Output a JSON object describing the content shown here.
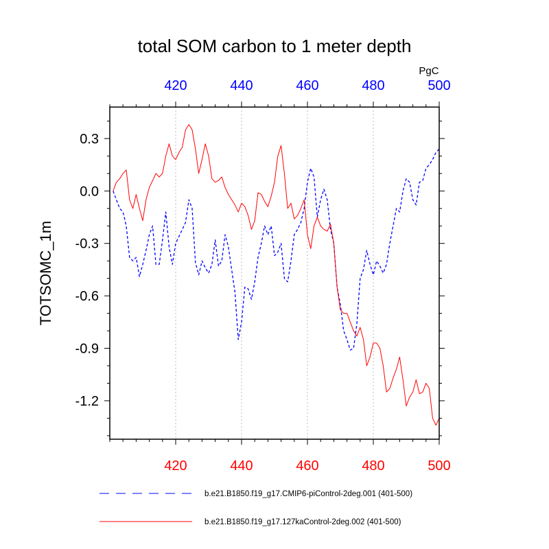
{
  "chart_data": {
    "type": "line",
    "title": "total SOM carbon to 1 meter depth",
    "units": "PgC",
    "ylabel": "TOTSOMC_1m",
    "xlabel": "",
    "xlim": [
      400,
      500
    ],
    "ylim": [
      -1.42,
      0.48
    ],
    "x_ticks": [
      420,
      440,
      460,
      480,
      500
    ],
    "y_ticks": [
      0.3,
      0.0,
      -0.3,
      -0.6,
      -0.9,
      -1.2
    ],
    "y_tick_labels": [
      "0.3",
      "0.0",
      "-0.3",
      "-0.6",
      "-0.9",
      "-1.2"
    ],
    "grid": "vertical dotted at major x ticks",
    "colors": {
      "bottom_axis": "#ff0000",
      "top_axis": "#0000ff"
    },
    "x": [
      401,
      402,
      403,
      404,
      405,
      406,
      407,
      408,
      409,
      410,
      411,
      412,
      413,
      414,
      415,
      416,
      417,
      418,
      419,
      420,
      421,
      422,
      423,
      424,
      425,
      426,
      427,
      428,
      429,
      430,
      431,
      432,
      433,
      434,
      435,
      436,
      437,
      438,
      439,
      440,
      441,
      442,
      443,
      444,
      445,
      446,
      447,
      448,
      449,
      450,
      451,
      452,
      453,
      454,
      455,
      456,
      457,
      458,
      459,
      460,
      461,
      462,
      463,
      464,
      465,
      466,
      467,
      468,
      469,
      470,
      471,
      472,
      473,
      474,
      475,
      476,
      477,
      478,
      479,
      480,
      481,
      482,
      483,
      484,
      485,
      486,
      487,
      488,
      489,
      490,
      491,
      492,
      493,
      494,
      495,
      496,
      497,
      498,
      499,
      500
    ],
    "series": [
      {
        "name": "b.e21.B1850.f19_g17.CMIP6-piControl-2deg.001 (401-500)",
        "color": "#0000ff",
        "dash": "dashed",
        "values": [
          0.0,
          -0.05,
          -0.1,
          -0.12,
          -0.2,
          -0.38,
          -0.4,
          -0.38,
          -0.49,
          -0.42,
          -0.34,
          -0.25,
          -0.2,
          -0.42,
          -0.42,
          -0.28,
          -0.12,
          -0.32,
          -0.42,
          -0.3,
          -0.26,
          -0.22,
          -0.18,
          -0.05,
          -0.1,
          -0.41,
          -0.48,
          -0.4,
          -0.44,
          -0.47,
          -0.42,
          -0.28,
          -0.43,
          -0.4,
          -0.25,
          -0.32,
          -0.45,
          -0.58,
          -0.85,
          -0.75,
          -0.55,
          -0.56,
          -0.62,
          -0.52,
          -0.38,
          -0.3,
          -0.2,
          -0.25,
          -0.2,
          -0.37,
          -0.35,
          -0.3,
          -0.5,
          -0.52,
          -0.4,
          -0.25,
          -0.22,
          -0.18,
          -0.1,
          0.05,
          0.13,
          0.08,
          -0.15,
          -0.05,
          0.01,
          -0.05,
          -0.22,
          -0.3,
          -0.55,
          -0.65,
          -0.8,
          -0.85,
          -0.91,
          -0.9,
          -0.76,
          -0.5,
          -0.45,
          -0.34,
          -0.42,
          -0.48,
          -0.4,
          -0.43,
          -0.47,
          -0.42,
          -0.3,
          -0.2,
          -0.1,
          -0.12,
          0.0,
          0.07,
          0.05,
          -0.05,
          -0.08,
          0.05,
          0.06,
          0.13,
          0.15,
          0.18,
          0.22,
          0.24
        ]
      },
      {
        "name": "b.e21.B1850.f19_g17.127kaControl-2deg.002 (401-500)",
        "color": "#ff0000",
        "dash": "solid",
        "values": [
          0.0,
          0.05,
          0.07,
          0.1,
          0.12,
          -0.05,
          -0.1,
          -0.02,
          -0.1,
          -0.17,
          -0.05,
          0.02,
          0.06,
          0.1,
          0.08,
          0.1,
          0.2,
          0.27,
          0.2,
          0.18,
          0.22,
          0.25,
          0.35,
          0.38,
          0.35,
          0.24,
          0.1,
          0.18,
          0.27,
          0.2,
          0.07,
          0.05,
          0.06,
          0.08,
          0.02,
          -0.02,
          -0.05,
          -0.08,
          -0.12,
          -0.07,
          -0.09,
          -0.14,
          -0.22,
          -0.17,
          -0.01,
          -0.02,
          -0.06,
          -0.09,
          -0.03,
          0.05,
          0.2,
          0.26,
          0.1,
          -0.1,
          -0.07,
          -0.16,
          -0.14,
          -0.1,
          -0.05,
          -0.25,
          -0.33,
          -0.2,
          -0.15,
          -0.2,
          -0.22,
          -0.23,
          -0.19,
          -0.3,
          -0.55,
          -0.68,
          -0.7,
          -0.7,
          -0.75,
          -0.8,
          -0.83,
          -0.78,
          -0.85,
          -1.0,
          -0.95,
          -0.87,
          -0.87,
          -0.9,
          -1.0,
          -1.15,
          -1.13,
          -1.07,
          -1.02,
          -0.95,
          -1.08,
          -1.23,
          -1.18,
          -1.15,
          -1.08,
          -1.16,
          -1.15,
          -1.1,
          -1.13,
          -1.3,
          -1.34,
          -1.3
        ]
      }
    ]
  }
}
